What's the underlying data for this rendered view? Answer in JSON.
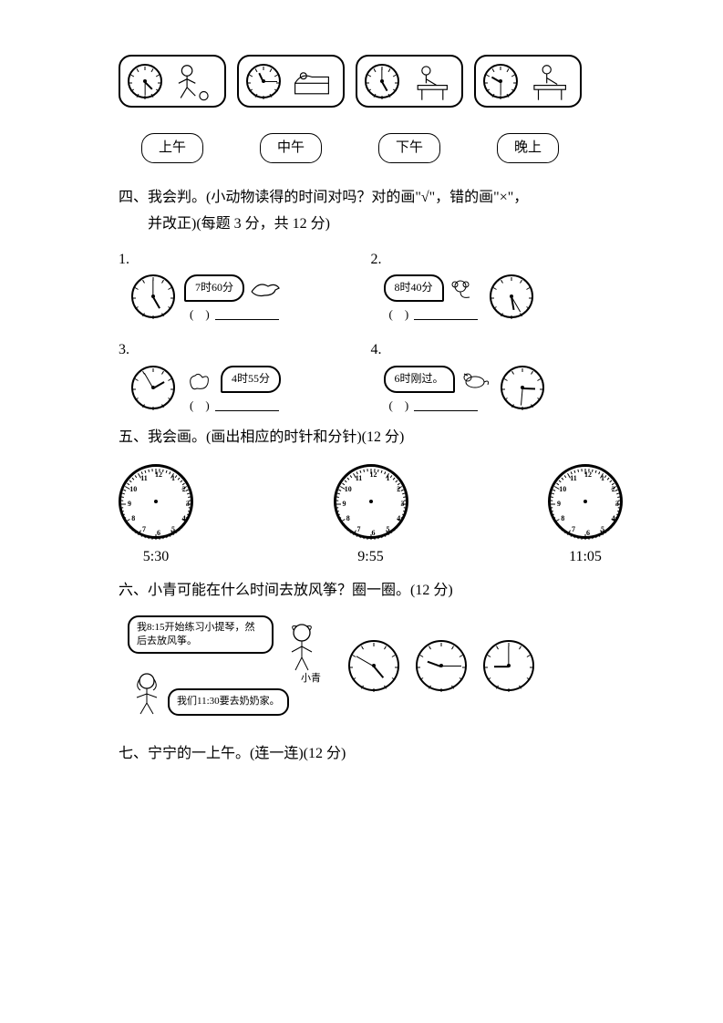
{
  "top_panels": {
    "labels": [
      "上午",
      "中午",
      "下午",
      "晚上"
    ],
    "items": [
      {
        "clock": {
          "hour_angle": 135,
          "min_angle": 180
        },
        "alt": "踢球"
      },
      {
        "clock": {
          "hour_angle": -25,
          "min_angle": 90
        },
        "alt": "睡觉"
      },
      {
        "clock": {
          "hour_angle": 150,
          "min_angle": 0
        },
        "alt": "写作业"
      },
      {
        "clock": {
          "hour_angle": -60,
          "min_angle": 180
        },
        "alt": "学习"
      }
    ]
  },
  "q4": {
    "title": "四、我会判。(小动物读得的时间对吗？对的画\"√\"，错的画\"×\"，",
    "title2": "并改正)(每题 3 分，共 12 分)",
    "items": [
      {
        "n": "1.",
        "text": "7时60分",
        "clock": {
          "hour_angle": 150,
          "min_angle": 0
        },
        "reverse": false
      },
      {
        "n": "2.",
        "text": "8时40分",
        "clock": {
          "hour_angle": 170,
          "min_angle": 150
        },
        "reverse": true
      },
      {
        "n": "3.",
        "text": "4时55分",
        "clock": {
          "hour_angle": 60,
          "min_angle": -30
        },
        "reverse": false
      },
      {
        "n": "4.",
        "text": "6时刚过。",
        "clock": {
          "hour_angle": 92,
          "min_angle": 185
        },
        "reverse": true
      }
    ]
  },
  "q5": {
    "title": "五、我会画。(画出相应的时针和分针)(12 分)",
    "times": [
      "5:30",
      "9:55",
      "11:05"
    ]
  },
  "q6": {
    "title": "六、小青可能在什么时间去放风筝？圈一圈。(12 分)",
    "speech1": "我8:15开始练习小提琴，然后去放风筝。",
    "speech2": "我们11:30要去奶奶家。",
    "name": "小青",
    "clocks": [
      {
        "hour_angle": 140,
        "min_angle": -60
      },
      {
        "hour_angle": -70,
        "min_angle": 90
      },
      {
        "hour_angle": -90,
        "min_angle": 0
      }
    ]
  },
  "q7": {
    "title": "七、宁宁的一上午。(连一连)(12 分)"
  },
  "colors": {
    "ink": "#000000",
    "paper": "#ffffff",
    "gray": "#555555"
  }
}
